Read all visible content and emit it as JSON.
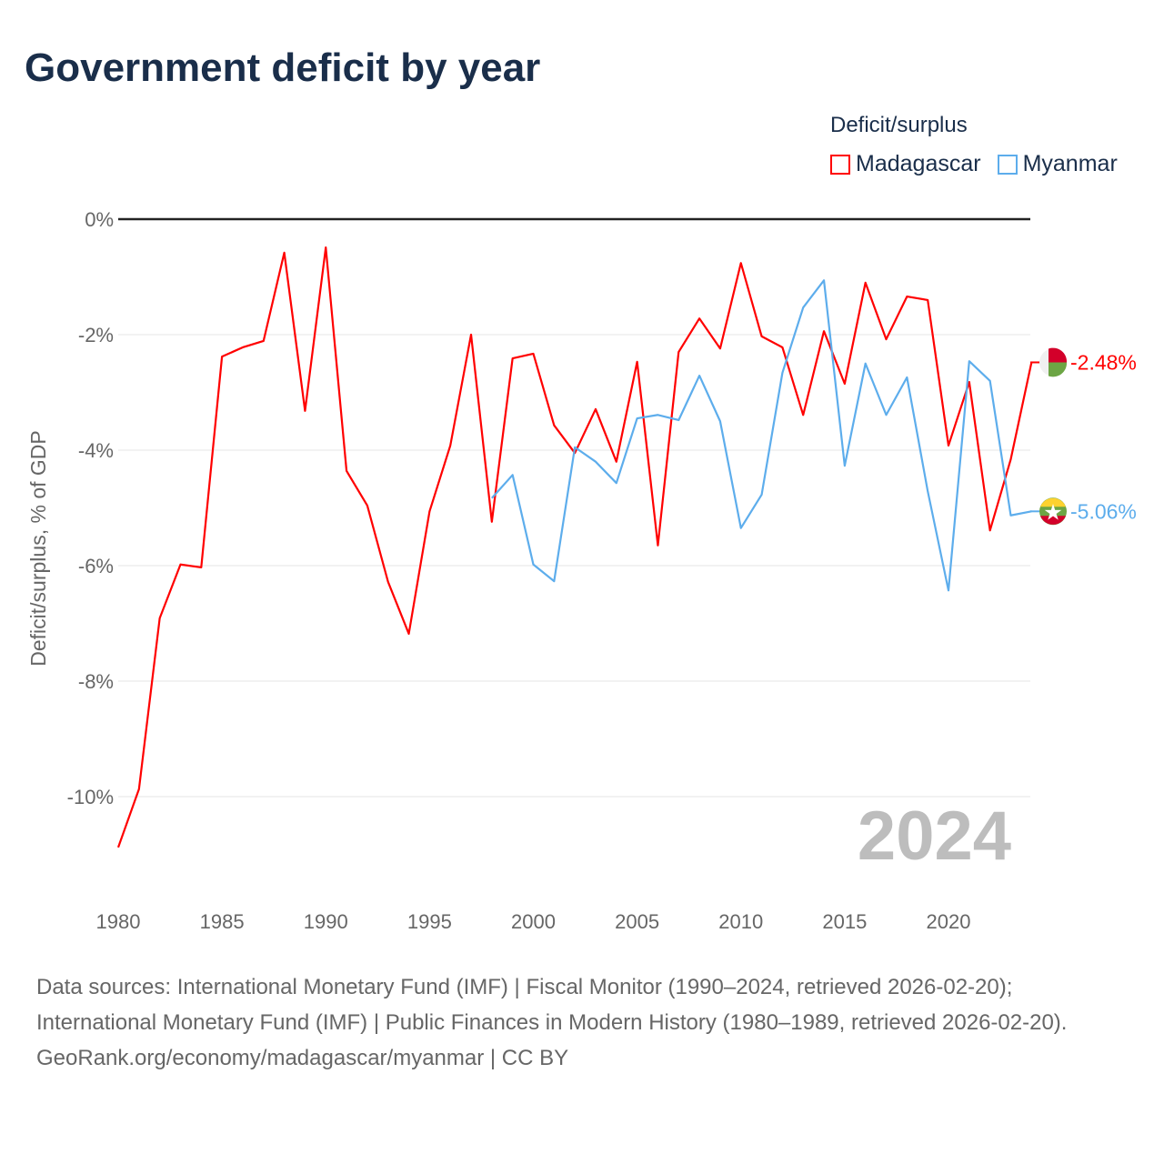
{
  "title": "Government deficit by year",
  "chart_data": {
    "type": "line",
    "title": "Government deficit by year",
    "ylabel": "Deficit/surplus, % of GDP",
    "xlabel": "",
    "legend_title": "Deficit/surplus",
    "legend_position": "top-right",
    "xlim": [
      1980,
      2024
    ],
    "ylim": [
      -11.2,
      0
    ],
    "x_ticks": [
      "1980",
      "1985",
      "1990",
      "1995",
      "2000",
      "2005",
      "2010",
      "2015",
      "2020"
    ],
    "y_ticks": [
      {
        "v": 0,
        "label": "0%"
      },
      {
        "v": -2,
        "label": "-2%"
      },
      {
        "v": -4,
        "label": "-4%"
      },
      {
        "v": -6,
        "label": "-6%"
      },
      {
        "v": -8,
        "label": "-8%"
      },
      {
        "v": -10,
        "label": "-10%"
      }
    ],
    "year_watermark": "2024",
    "series": [
      {
        "name": "Madagascar",
        "color": "#ff0000",
        "end_label": "-2.48%",
        "start": 1980,
        "values": [
          -10.88,
          -9.87,
          -6.91,
          -5.98,
          -6.03,
          -2.38,
          -2.22,
          -2.11,
          -0.58,
          -3.32,
          -0.49,
          -4.36,
          -4.96,
          -6.28,
          -7.18,
          -5.06,
          -3.92,
          -2.0,
          -5.24,
          -2.41,
          -2.33,
          -3.57,
          -4.05,
          -3.29,
          -4.2,
          -2.47,
          -5.65,
          -2.3,
          -1.72,
          -2.24,
          -0.76,
          -2.03,
          -2.22,
          -3.39,
          -1.94,
          -2.85,
          -1.1,
          -2.08,
          -1.34,
          -1.4,
          -3.92,
          -2.82,
          -5.39,
          -4.16,
          -2.48
        ]
      },
      {
        "name": "Myanmar",
        "color": "#5dadec",
        "end_label": "-5.06%",
        "start": 1998,
        "values": [
          -4.83,
          -4.43,
          -5.98,
          -6.27,
          -3.95,
          -4.2,
          -4.57,
          -3.45,
          -3.39,
          -3.48,
          -2.71,
          -3.5,
          -5.35,
          -4.77,
          -2.66,
          -1.53,
          -1.06,
          -4.27,
          -2.5,
          -3.39,
          -2.74,
          -4.71,
          -6.43,
          -2.46,
          -2.8,
          -5.13,
          -5.06
        ]
      }
    ]
  },
  "footer": {
    "sources": "Data sources: International Monetary Fund (IMF) | Fiscal Monitor (1990–2024, retrieved 2026-02-20); International Monetary Fund (IMF) | Public Finances in Modern History (1980–1989, retrieved 2026-02-20).",
    "credit": "GeoRank.org/economy/madagascar/myanmar | CC BY"
  }
}
